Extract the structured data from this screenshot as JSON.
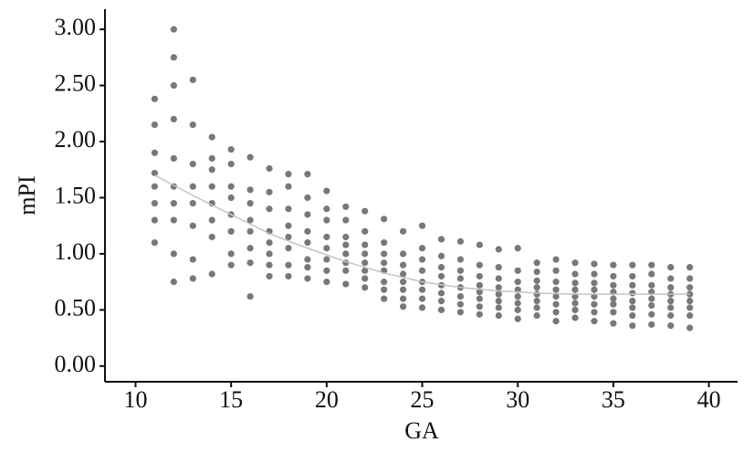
{
  "chart_data": {
    "type": "scatter",
    "xlabel": "GA",
    "ylabel": "mPI",
    "xlim": [
      8.4,
      41.5
    ],
    "ylim": [
      -0.14,
      3.18
    ],
    "xticks": [
      10,
      15,
      20,
      25,
      30,
      35,
      40
    ],
    "yticks": [
      {
        "value": 0,
        "label": "0.00"
      },
      {
        "value": 0.5,
        "label": "0.50"
      },
      {
        "value": 1,
        "label": "1.00"
      },
      {
        "value": 1.5,
        "label": "1.50"
      },
      {
        "value": 2,
        "label": "2.00"
      },
      {
        "value": 2.5,
        "label": "2.50"
      },
      {
        "value": 3,
        "label": "3.00"
      }
    ],
    "series": [
      {
        "color": "#787878",
        "x": [
          11,
          11,
          11,
          11,
          11,
          11,
          11,
          11,
          12,
          12,
          12,
          12,
          12,
          12,
          12,
          12,
          12,
          12,
          13,
          13,
          13,
          13,
          13,
          13,
          13,
          13,
          14,
          14,
          14,
          14,
          14,
          14,
          14,
          14,
          15,
          15,
          15,
          15,
          15,
          15,
          15,
          15,
          16,
          16,
          16,
          16,
          16,
          16,
          16,
          16,
          17,
          17,
          17,
          17,
          17,
          17,
          17,
          17,
          18,
          18,
          18,
          18,
          18,
          18,
          18,
          18,
          19,
          19,
          19,
          19,
          19,
          19,
          19,
          19,
          20,
          20,
          20,
          20,
          20,
          20,
          20,
          20,
          21,
          21,
          21,
          21,
          21,
          21,
          21,
          21,
          22,
          22,
          22,
          22,
          22,
          22,
          22,
          22,
          23,
          23,
          23,
          23,
          23,
          23,
          23,
          23,
          24,
          24,
          24,
          24,
          24,
          24,
          24,
          24,
          25,
          25,
          25,
          25,
          25,
          25,
          25,
          25,
          26,
          26,
          26,
          26,
          26,
          26,
          26,
          26,
          27,
          27,
          27,
          27,
          27,
          27,
          27,
          27,
          28,
          28,
          28,
          28,
          28,
          28,
          28,
          28,
          29,
          29,
          29,
          29,
          29,
          29,
          29,
          29,
          30,
          30,
          30,
          30,
          30,
          30,
          30,
          30,
          31,
          31,
          31,
          31,
          31,
          31,
          31,
          31,
          32,
          32,
          32,
          32,
          32,
          32,
          32,
          32,
          33,
          33,
          33,
          33,
          33,
          33,
          33,
          33,
          34,
          34,
          34,
          34,
          34,
          34,
          34,
          34,
          35,
          35,
          35,
          35,
          35,
          35,
          35,
          35,
          36,
          36,
          36,
          36,
          36,
          36,
          36,
          36,
          37,
          37,
          37,
          37,
          37,
          37,
          37,
          37,
          38,
          38,
          38,
          38,
          38,
          38,
          38,
          38,
          39,
          39,
          39,
          39,
          39,
          39,
          39,
          39
        ],
        "values": [
          1.1,
          1.3,
          1.45,
          1.6,
          1.72,
          1.9,
          2.15,
          2.38,
          0.75,
          1.0,
          1.3,
          1.45,
          1.6,
          1.85,
          2.2,
          2.5,
          2.75,
          3.0,
          0.78,
          0.95,
          1.25,
          1.45,
          1.6,
          1.8,
          2.15,
          2.55,
          0.82,
          1.15,
          1.3,
          1.45,
          1.6,
          1.75,
          1.85,
          2.04,
          0.9,
          1.0,
          1.2,
          1.35,
          1.5,
          1.6,
          1.8,
          1.93,
          0.62,
          0.92,
          1.05,
          1.2,
          1.3,
          1.45,
          1.57,
          1.86,
          0.8,
          0.9,
          1.0,
          1.1,
          1.2,
          1.4,
          1.55,
          1.76,
          0.8,
          0.9,
          1.05,
          1.15,
          1.25,
          1.4,
          1.6,
          1.71,
          0.78,
          0.88,
          0.95,
          1.1,
          1.2,
          1.35,
          1.5,
          1.71,
          0.75,
          0.85,
          0.95,
          1.05,
          1.15,
          1.3,
          1.4,
          1.56,
          0.73,
          0.85,
          0.92,
          1.0,
          1.08,
          1.15,
          1.3,
          1.42,
          0.7,
          0.78,
          0.85,
          0.92,
          1.0,
          1.08,
          1.2,
          1.38,
          0.6,
          0.68,
          0.75,
          0.85,
          0.92,
          1.0,
          1.1,
          1.31,
          0.53,
          0.6,
          0.68,
          0.75,
          0.82,
          0.9,
          1.0,
          1.2,
          0.52,
          0.6,
          0.68,
          0.75,
          0.85,
          0.95,
          1.05,
          1.25,
          0.5,
          0.58,
          0.65,
          0.72,
          0.8,
          0.88,
          0.98,
          1.13,
          0.48,
          0.55,
          0.62,
          0.7,
          0.78,
          0.85,
          0.95,
          1.11,
          0.46,
          0.53,
          0.6,
          0.66,
          0.72,
          0.8,
          0.9,
          1.08,
          0.45,
          0.52,
          0.58,
          0.64,
          0.7,
          0.78,
          0.88,
          1.04,
          0.42,
          0.5,
          0.56,
          0.62,
          0.68,
          0.75,
          0.85,
          1.05,
          0.45,
          0.52,
          0.58,
          0.64,
          0.7,
          0.76,
          0.84,
          0.92,
          0.4,
          0.48,
          0.55,
          0.62,
          0.68,
          0.75,
          0.85,
          0.95,
          0.43,
          0.5,
          0.56,
          0.62,
          0.68,
          0.74,
          0.82,
          0.92,
          0.4,
          0.48,
          0.55,
          0.62,
          0.68,
          0.74,
          0.82,
          0.91,
          0.38,
          0.48,
          0.55,
          0.6,
          0.66,
          0.72,
          0.8,
          0.9,
          0.36,
          0.45,
          0.52,
          0.58,
          0.65,
          0.72,
          0.8,
          0.9,
          0.37,
          0.46,
          0.54,
          0.6,
          0.66,
          0.72,
          0.82,
          0.9,
          0.36,
          0.45,
          0.52,
          0.58,
          0.64,
          0.7,
          0.78,
          0.88,
          0.34,
          0.45,
          0.52,
          0.58,
          0.64,
          0.7,
          0.78,
          0.88
        ]
      },
      {
        "mode": "line",
        "color": "#c4c4c4",
        "x": [
          11,
          13,
          15,
          17,
          19,
          21,
          23,
          25,
          27,
          29,
          31,
          33,
          35,
          37,
          39
        ],
        "values": [
          1.7,
          1.52,
          1.35,
          1.18,
          1.05,
          0.93,
          0.83,
          0.75,
          0.7,
          0.67,
          0.65,
          0.64,
          0.64,
          0.64,
          0.64
        ]
      }
    ]
  }
}
